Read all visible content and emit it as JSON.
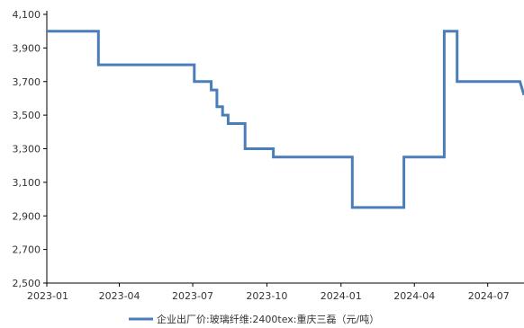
{
  "chart_data": {
    "type": "line",
    "title": "",
    "xlabel": "",
    "ylabel": "",
    "ylim": [
      2500,
      4100
    ],
    "y_ticks": [
      "4,100",
      "3,900",
      "3,700",
      "3,500",
      "3,300",
      "3,100",
      "2,900",
      "2,700",
      "2,500"
    ],
    "y_tick_values": [
      4100,
      3900,
      3700,
      3500,
      3300,
      3100,
      2900,
      2700,
      2500
    ],
    "xlim": [
      "2023-01-01",
      "2024-08-15"
    ],
    "x_ticks": [
      "2023-01",
      "2023-04",
      "2023-07",
      "2023-10",
      "2024-01",
      "2024-04",
      "2024-07"
    ],
    "x_tick_dates": [
      "2023-01-01",
      "2023-04-01",
      "2023-07-01",
      "2023-10-01",
      "2024-01-01",
      "2024-04-01",
      "2024-07-01"
    ],
    "grid": false,
    "legend_position": "bottom",
    "colors": {
      "line": "#4a7ebb",
      "axis": "#000000"
    },
    "series": [
      {
        "name": "企业出厂价:玻璃纤维:2400tex:重庆三磊（元/吨）",
        "x": [
          "2023-01-01",
          "2023-03-06",
          "2023-03-06",
          "2023-07-03",
          "2023-07-03",
          "2023-07-24",
          "2023-07-24",
          "2023-07-31",
          "2023-07-31",
          "2023-08-07",
          "2023-08-07",
          "2023-08-14",
          "2023-08-14",
          "2023-08-21",
          "2023-08-21",
          "2023-09-04",
          "2023-09-04",
          "2023-10-09",
          "2023-10-09",
          "2024-01-15",
          "2024-01-15",
          "2024-03-19",
          "2024-03-19",
          "2024-05-08",
          "2024-05-08",
          "2024-05-24",
          "2024-05-24",
          "2024-08-10",
          "2024-08-15"
        ],
        "values": [
          4000,
          4000,
          3800,
          3800,
          3700,
          3700,
          3650,
          3650,
          3550,
          3550,
          3500,
          3500,
          3450,
          3450,
          3450,
          3450,
          3300,
          3300,
          3250,
          3250,
          2950,
          2950,
          3250,
          3250,
          4000,
          4000,
          3700,
          3700,
          3620
        ]
      }
    ]
  }
}
